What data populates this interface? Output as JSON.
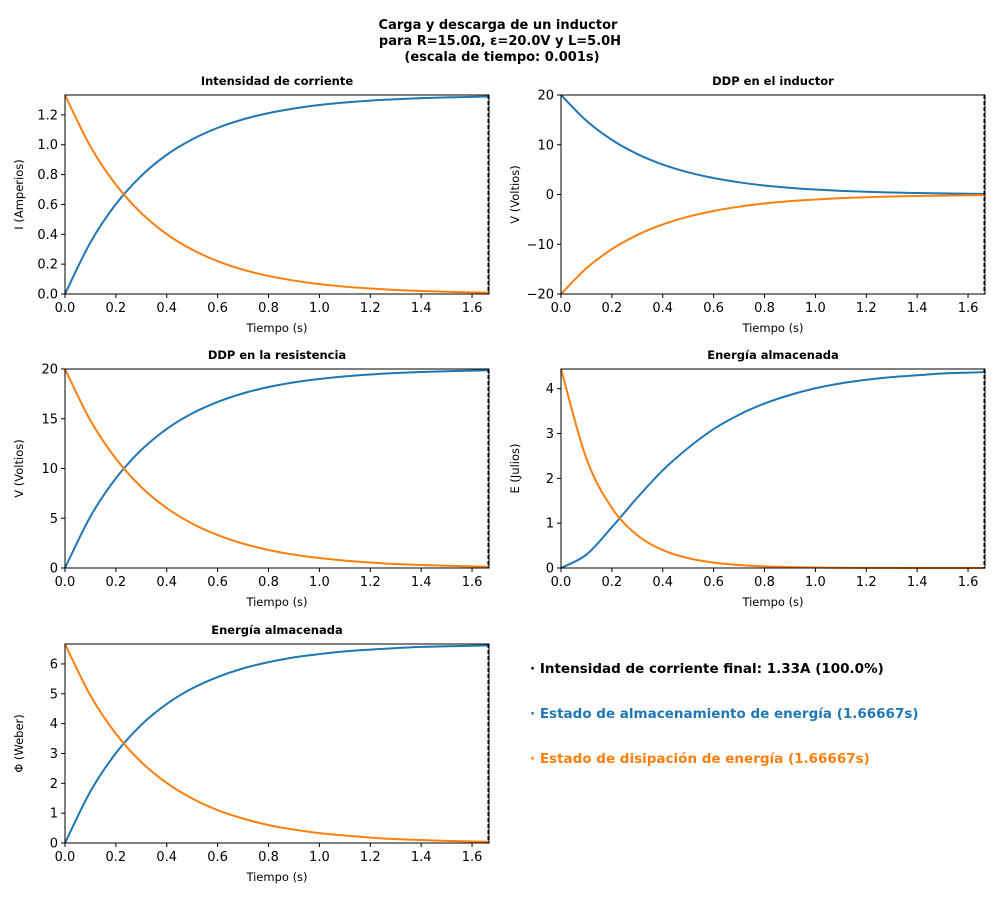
{
  "figure": {
    "title_line1": "Carga y descarga de un inductor",
    "title_line2": "para R=15.0Ω, ε=20.0V y L=5.0H",
    "title_line3": "(escala de tiempo: 0.001s)"
  },
  "colors": {
    "charge": "#1f77b4",
    "discharge": "#ff7f0e",
    "text": "#000000"
  },
  "info": {
    "line1": "· Intensidad de corriente final: 1.33A (100.0%)",
    "line2": "· Estado de almacenamiento de energía (1.66667s)",
    "line3": "· Estado de disipación de energía (1.66667s)"
  },
  "chart_data": [
    {
      "type": "line",
      "title": "Intensidad de corriente",
      "xlabel": "Tiempo (s)",
      "ylabel": "I (Amperios)",
      "xlim": [
        0,
        1.66667
      ],
      "ylim": [
        0,
        1.3333
      ],
      "xticks": [
        "0.0",
        "0.2",
        "0.4",
        "0.6",
        "0.8",
        "1.0",
        "1.2",
        "1.4",
        "1.6"
      ],
      "yticks": [
        "0.0",
        "0.2",
        "0.4",
        "0.6",
        "0.8",
        "1.0",
        "1.2"
      ],
      "x": [
        0,
        0.1,
        0.2,
        0.3,
        0.4,
        0.5,
        0.6,
        0.7,
        0.8,
        0.9,
        1.0,
        1.1,
        1.2,
        1.3,
        1.4,
        1.5,
        1.6,
        1.66667
      ],
      "series": [
        {
          "values": [
            0,
            0.346,
            0.602,
            0.792,
            0.933,
            1.036,
            1.113,
            1.17,
            1.212,
            1.243,
            1.266,
            1.283,
            1.296,
            1.305,
            1.312,
            1.317,
            1.321,
            1.323
          ]
        },
        {
          "values": [
            1.333,
            0.988,
            0.732,
            0.542,
            0.401,
            0.297,
            0.22,
            0.163,
            0.121,
            0.09,
            0.066,
            0.049,
            0.037,
            0.027,
            0.02,
            0.015,
            0.011,
            0.009
          ]
        }
      ]
    },
    {
      "type": "line",
      "title": "DDP en el inductor",
      "xlabel": "Tiempo (s)",
      "ylabel": "V (Voltios)",
      "xlim": [
        0,
        1.66667
      ],
      "ylim": [
        -20,
        20
      ],
      "xticks": [
        "0.0",
        "0.2",
        "0.4",
        "0.6",
        "0.8",
        "1.0",
        "1.2",
        "1.4",
        "1.6"
      ],
      "yticks": [
        "−20",
        "−10",
        "0",
        "10",
        "20"
      ],
      "x": [
        0,
        0.1,
        0.2,
        0.3,
        0.4,
        0.5,
        0.6,
        0.7,
        0.8,
        0.9,
        1.0,
        1.1,
        1.2,
        1.3,
        1.4,
        1.5,
        1.6,
        1.66667
      ],
      "series": [
        {
          "values": [
            20,
            14.82,
            10.98,
            8.13,
            6.02,
            4.46,
            3.31,
            2.45,
            1.81,
            1.34,
            1.0,
            0.74,
            0.55,
            0.4,
            0.3,
            0.22,
            0.16,
            0.13
          ]
        },
        {
          "values": [
            -20,
            -14.82,
            -10.98,
            -8.13,
            -6.02,
            -4.46,
            -3.31,
            -2.45,
            -1.81,
            -1.34,
            -1.0,
            -0.74,
            -0.55,
            -0.4,
            -0.3,
            -0.22,
            -0.16,
            -0.13
          ]
        }
      ]
    },
    {
      "type": "line",
      "title": "DDP en la resistencia",
      "xlabel": "Tiempo (s)",
      "ylabel": "V (Voltios)",
      "xlim": [
        0,
        1.66667
      ],
      "ylim": [
        0,
        20
      ],
      "xticks": [
        "0.0",
        "0.2",
        "0.4",
        "0.6",
        "0.8",
        "1.0",
        "1.2",
        "1.4",
        "1.6"
      ],
      "yticks": [
        "0",
        "5",
        "10",
        "15",
        "20"
      ],
      "x": [
        0,
        0.1,
        0.2,
        0.3,
        0.4,
        0.5,
        0.6,
        0.7,
        0.8,
        0.9,
        1.0,
        1.1,
        1.2,
        1.3,
        1.4,
        1.5,
        1.6,
        1.66667
      ],
      "series": [
        {
          "values": [
            0,
            5.18,
            9.02,
            11.87,
            13.98,
            15.54,
            16.69,
            17.55,
            18.19,
            18.66,
            19.0,
            19.26,
            19.45,
            19.6,
            19.7,
            19.78,
            19.84,
            19.87
          ]
        },
        {
          "values": [
            20,
            14.82,
            10.98,
            8.13,
            6.02,
            4.46,
            3.31,
            2.45,
            1.81,
            1.34,
            1.0,
            0.74,
            0.55,
            0.4,
            0.3,
            0.22,
            0.16,
            0.13
          ]
        }
      ]
    },
    {
      "type": "line",
      "title": "Energía almacenada",
      "xlabel": "Tiempo (s)",
      "ylabel": "E (Julios)",
      "xlim": [
        0,
        1.66667
      ],
      "ylim": [
        0,
        4.44
      ],
      "xticks": [
        "0.0",
        "0.2",
        "0.4",
        "0.6",
        "0.8",
        "1.0",
        "1.2",
        "1.4",
        "1.6"
      ],
      "yticks": [
        "0",
        "1",
        "2",
        "3",
        "4"
      ],
      "x": [
        0,
        0.1,
        0.2,
        0.3,
        0.4,
        0.5,
        0.6,
        0.7,
        0.8,
        0.9,
        1.0,
        1.1,
        1.2,
        1.3,
        1.4,
        1.5,
        1.6,
        1.66667
      ],
      "series": [
        {
          "values": [
            0,
            0.3,
            0.91,
            1.57,
            2.18,
            2.68,
            3.1,
            3.42,
            3.67,
            3.86,
            4.01,
            4.12,
            4.2,
            4.26,
            4.3,
            4.34,
            4.36,
            4.37
          ]
        },
        {
          "values": [
            4.44,
            2.44,
            1.34,
            0.73,
            0.4,
            0.22,
            0.12,
            0.066,
            0.036,
            0.02,
            0.011,
            0.006,
            0.003,
            0.002,
            0.001,
            0.0005,
            0.0003,
            0.0002
          ]
        }
      ]
    },
    {
      "type": "line",
      "title": "Energía almacenada",
      "xlabel": "Tiempo (s)",
      "ylabel": "Φ (Weber)",
      "xlim": [
        0,
        1.66667
      ],
      "ylim": [
        0,
        6.667
      ],
      "xticks": [
        "0.0",
        "0.2",
        "0.4",
        "0.6",
        "0.8",
        "1.0",
        "1.2",
        "1.4",
        "1.6"
      ],
      "yticks": [
        "0",
        "1",
        "2",
        "3",
        "4",
        "5",
        "6"
      ],
      "x": [
        0,
        0.1,
        0.2,
        0.3,
        0.4,
        0.5,
        0.6,
        0.7,
        0.8,
        0.9,
        1.0,
        1.1,
        1.2,
        1.3,
        1.4,
        1.5,
        1.6,
        1.66667
      ],
      "series": [
        {
          "values": [
            0,
            1.73,
            3.01,
            3.96,
            4.66,
            5.18,
            5.56,
            5.85,
            6.06,
            6.22,
            6.33,
            6.42,
            6.48,
            6.53,
            6.57,
            6.59,
            6.61,
            6.62
          ]
        },
        {
          "values": [
            6.667,
            4.94,
            3.66,
            2.71,
            2.01,
            1.49,
            1.1,
            0.82,
            0.6,
            0.45,
            0.33,
            0.25,
            0.18,
            0.13,
            0.1,
            0.07,
            0.05,
            0.04
          ]
        }
      ]
    }
  ]
}
